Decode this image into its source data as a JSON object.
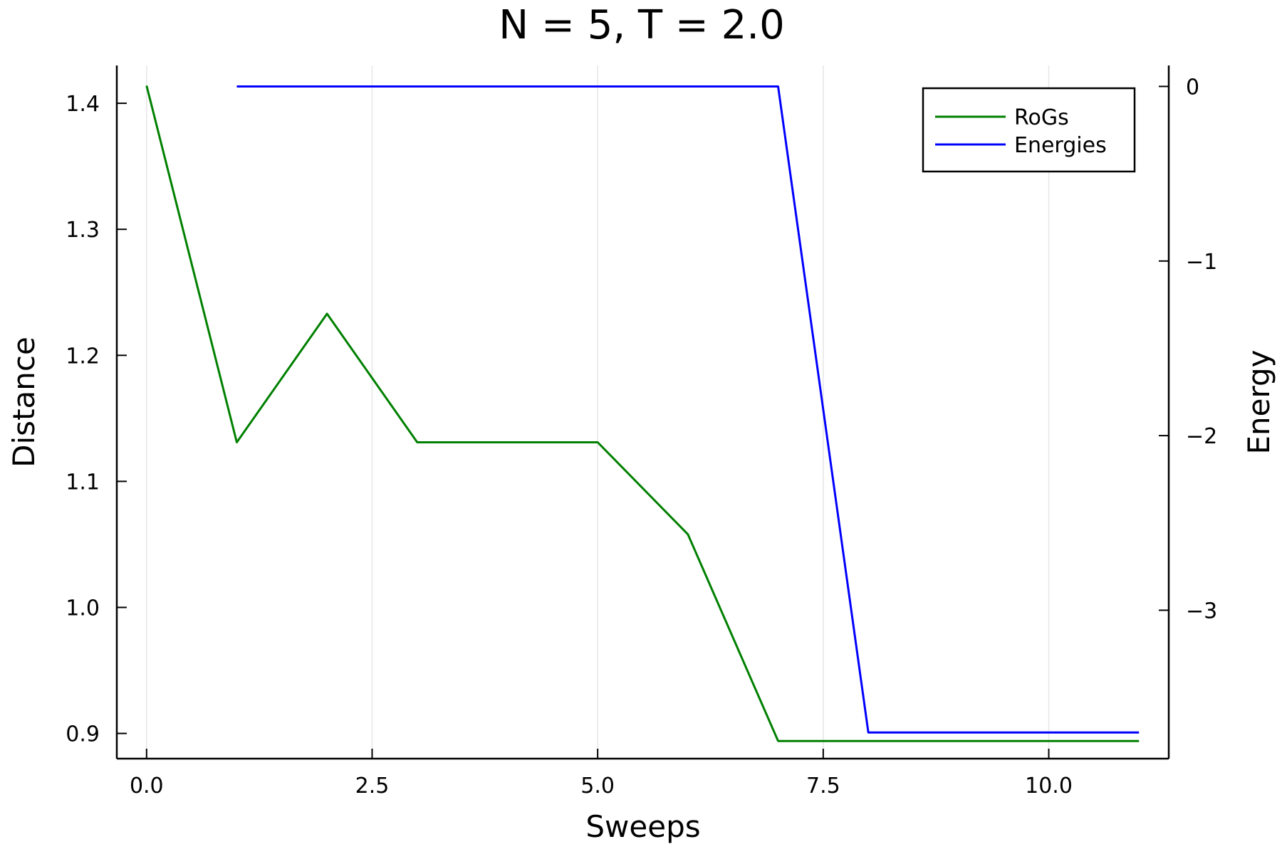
{
  "chart_data": {
    "type": "line",
    "title": "N = 5, T = 2.0",
    "xlabel": "Sweeps",
    "ylabel": "Distance",
    "y2label": "Energy",
    "xlim": [
      -0.33,
      11.33
    ],
    "ylim": [
      0.88,
      1.43
    ],
    "y2lim": [
      -3.85,
      0.12
    ],
    "x_ticks": [
      0.0,
      2.5,
      5.0,
      7.5,
      10.0
    ],
    "x_tick_labels": [
      "0.0",
      "2.5",
      "5.0",
      "7.5",
      "10.0"
    ],
    "y_ticks": [
      0.9,
      1.0,
      1.1,
      1.2,
      1.3,
      1.4
    ],
    "y_tick_labels": [
      "0.9",
      "1.0",
      "1.1",
      "1.2",
      "1.3",
      "1.4"
    ],
    "y2_ticks": [
      0,
      -1,
      -2,
      -3
    ],
    "y2_tick_labels": [
      "0",
      "−1",
      "−2",
      "−3"
    ],
    "grid": "vertical",
    "legend_position": "top-right",
    "series": [
      {
        "name": "RoGs",
        "axis": "left",
        "color": "#008000",
        "x": [
          0,
          1,
          2,
          3,
          4,
          5,
          6,
          7,
          8,
          9,
          10,
          11
        ],
        "y": [
          1.414,
          1.131,
          1.233,
          1.131,
          1.131,
          1.131,
          1.058,
          0.894,
          0.894,
          0.894,
          0.894,
          0.894
        ]
      },
      {
        "name": "Energies",
        "axis": "right",
        "color": "#0000ff",
        "x": [
          1,
          2,
          3,
          4,
          5,
          6,
          7,
          8,
          9,
          10,
          11
        ],
        "y": [
          0,
          0,
          0,
          0,
          0,
          0,
          0,
          -3.7,
          -3.7,
          -3.7,
          -3.7
        ]
      }
    ]
  }
}
